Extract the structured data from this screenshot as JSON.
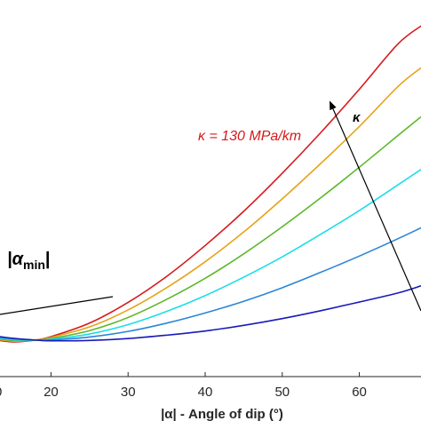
{
  "chart_data": {
    "type": "line",
    "xlabel": "|α| - Angle of dip (°)",
    "xlim": [
      12,
      68
    ],
    "x_ticks": [
      20,
      30,
      40,
      50,
      60
    ],
    "x_tick_labels": [
      "20",
      "30",
      "40",
      "50",
      "60"
    ],
    "x_edge_label": "0",
    "ylim": [
      0,
      1
    ],
    "grid": false,
    "series": [
      {
        "color": "#d7191c",
        "x": [
          12,
          15,
          18,
          20,
          25,
          30,
          35,
          40,
          45,
          50,
          55,
          60,
          65,
          68
        ],
        "values": [
          0.1,
          0.092,
          0.097,
          0.106,
          0.142,
          0.197,
          0.266,
          0.348,
          0.439,
          0.54,
          0.648,
          0.763,
          0.883,
          0.931
        ]
      },
      {
        "color": "#e8a21a",
        "x": [
          12,
          15,
          18,
          20,
          25,
          30,
          35,
          40,
          45,
          50,
          55,
          60,
          65,
          68
        ],
        "values": [
          0.102,
          0.094,
          0.097,
          0.104,
          0.132,
          0.177,
          0.236,
          0.305,
          0.384,
          0.472,
          0.566,
          0.664,
          0.77,
          0.82
        ]
      },
      {
        "color": "#5cb82a",
        "x": [
          12,
          15,
          18,
          20,
          25,
          30,
          35,
          40,
          45,
          50,
          55,
          60,
          65,
          68
        ],
        "values": [
          0.104,
          0.096,
          0.097,
          0.101,
          0.122,
          0.157,
          0.205,
          0.261,
          0.326,
          0.398,
          0.475,
          0.556,
          0.64,
          0.69
        ]
      },
      {
        "color": "#1ddde8",
        "x": [
          12,
          15,
          18,
          20,
          25,
          30,
          35,
          40,
          45,
          50,
          55,
          60,
          65,
          68
        ],
        "values": [
          0.106,
          0.098,
          0.097,
          0.099,
          0.113,
          0.138,
          0.173,
          0.215,
          0.264,
          0.318,
          0.378,
          0.441,
          0.509,
          0.55
        ]
      },
      {
        "color": "#2b85d6",
        "x": [
          12,
          15,
          18,
          20,
          25,
          30,
          35,
          40,
          45,
          50,
          55,
          60,
          65,
          68
        ],
        "values": [
          0.108,
          0.1,
          0.097,
          0.097,
          0.105,
          0.12,
          0.142,
          0.169,
          0.2,
          0.236,
          0.277,
          0.32,
          0.366,
          0.395
        ]
      },
      {
        "color": "#1a1ab8",
        "x": [
          12,
          15,
          18,
          20,
          25,
          30,
          35,
          40,
          45,
          50,
          55,
          60,
          65,
          68
        ],
        "values": [
          0.11,
          0.102,
          0.097,
          0.095,
          0.096,
          0.101,
          0.11,
          0.121,
          0.136,
          0.154,
          0.175,
          0.198,
          0.222,
          0.241
        ]
      }
    ],
    "annotations": {
      "kappa_label": "κ = 130 MPa/km",
      "kappa_label_color": "#d7191c",
      "arrow_label": "κ",
      "alpha_min_label_left": "|α",
      "alpha_min_label_sub": "min",
      "alpha_min_label_right": "|"
    }
  }
}
